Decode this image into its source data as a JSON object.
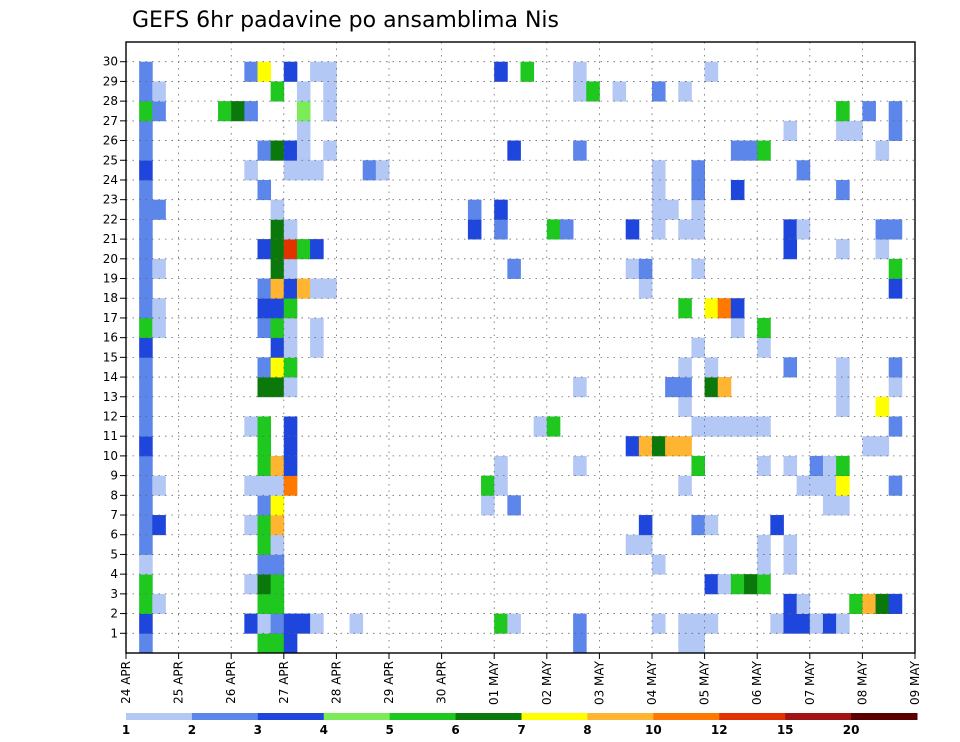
{
  "chart_data": {
    "type": "heatmap",
    "title": "GEFS 6hr padavine po ansamblima Nis",
    "xlabel": "",
    "ylabel": "",
    "y_tick_labels": [
      "1",
      "2",
      "3",
      "4",
      "5",
      "6",
      "7",
      "8",
      "9",
      "10",
      "11",
      "12",
      "13",
      "14",
      "15",
      "16",
      "17",
      "18",
      "19",
      "20",
      "21",
      "22",
      "23",
      "24",
      "25",
      "26",
      "27",
      "28",
      "29",
      "30"
    ],
    "x_tick_labels": [
      "24 APR",
      "25 APR",
      "26 APR",
      "27 APR",
      "28 APR",
      "29 APR",
      "30 APR",
      "01 MAY",
      "02 MAY",
      "03 MAY",
      "04 MAY",
      "05 MAY",
      "06 MAY",
      "07 MAY",
      "08 MAY",
      "09 MAY"
    ],
    "grid": true,
    "colorbar": {
      "labels": [
        "1",
        "2",
        "3",
        "4",
        "5",
        "6",
        "7",
        "8",
        "10",
        "12",
        "15",
        "20"
      ],
      "colors": [
        "#b4c8f5",
        "#5c86ea",
        "#1e46dc",
        "#7ceb5a",
        "#1ec81e",
        "#0a780a",
        "#ffff00",
        "#ffb432",
        "#ff7800",
        "#e13200",
        "#a01414",
        "#5a0000"
      ]
    },
    "cells": [
      [
        1,
        0,
        2
      ],
      [
        1,
        1,
        3
      ],
      [
        1,
        2,
        5
      ],
      [
        1,
        3,
        5
      ],
      [
        1,
        4,
        1
      ],
      [
        1,
        5,
        2
      ],
      [
        1,
        6,
        2
      ],
      [
        1,
        7,
        2
      ],
      [
        1,
        8,
        2
      ],
      [
        1,
        9,
        2
      ],
      [
        1,
        10,
        3
      ],
      [
        1,
        11,
        2
      ],
      [
        1,
        12,
        2
      ],
      [
        1,
        13,
        2
      ],
      [
        1,
        14,
        2
      ],
      [
        1,
        15,
        3
      ],
      [
        1,
        16,
        5
      ],
      [
        1,
        17,
        2
      ],
      [
        1,
        18,
        2
      ],
      [
        1,
        19,
        2
      ],
      [
        1,
        20,
        2
      ],
      [
        1,
        21,
        2
      ],
      [
        1,
        22,
        2
      ],
      [
        1,
        23,
        2
      ],
      [
        1,
        24,
        3
      ],
      [
        1,
        25,
        2
      ],
      [
        1,
        26,
        2
      ],
      [
        1,
        27,
        5
      ],
      [
        1,
        28,
        2
      ],
      [
        1,
        29,
        2
      ],
      [
        2,
        2,
        1
      ],
      [
        2,
        6,
        3
      ],
      [
        2,
        8,
        1
      ],
      [
        2,
        16,
        1
      ],
      [
        2,
        17,
        1
      ],
      [
        2,
        19,
        1
      ],
      [
        2,
        22,
        2
      ],
      [
        2,
        27,
        2
      ],
      [
        2,
        28,
        1
      ],
      [
        7,
        27,
        5
      ],
      [
        8,
        27,
        6
      ],
      [
        9,
        1,
        3
      ],
      [
        9,
        3,
        1
      ],
      [
        9,
        6,
        1
      ],
      [
        9,
        8,
        1
      ],
      [
        9,
        11,
        1
      ],
      [
        9,
        24,
        1
      ],
      [
        9,
        27,
        2
      ],
      [
        9,
        29,
        2
      ],
      [
        10,
        0,
        5
      ],
      [
        10,
        1,
        1
      ],
      [
        10,
        2,
        5
      ],
      [
        10,
        3,
        6
      ],
      [
        10,
        4,
        2
      ],
      [
        10,
        5,
        5
      ],
      [
        10,
        6,
        5
      ],
      [
        10,
        7,
        2
      ],
      [
        10,
        8,
        1
      ],
      [
        10,
        9,
        5
      ],
      [
        10,
        10,
        5
      ],
      [
        10,
        11,
        5
      ],
      [
        10,
        13,
        6
      ],
      [
        10,
        14,
        2
      ],
      [
        10,
        16,
        2
      ],
      [
        10,
        17,
        3
      ],
      [
        10,
        18,
        2
      ],
      [
        10,
        20,
        3
      ],
      [
        10,
        23,
        2
      ],
      [
        10,
        25,
        2
      ],
      [
        10,
        29,
        7
      ],
      [
        11,
        0,
        5
      ],
      [
        11,
        1,
        2
      ],
      [
        11,
        2,
        5
      ],
      [
        11,
        3,
        5
      ],
      [
        11,
        4,
        2
      ],
      [
        11,
        5,
        1
      ],
      [
        11,
        6,
        8
      ],
      [
        11,
        7,
        7
      ],
      [
        11,
        8,
        1
      ],
      [
        11,
        9,
        8
      ],
      [
        11,
        13,
        6
      ],
      [
        11,
        14,
        7
      ],
      [
        11,
        15,
        3
      ],
      [
        11,
        16,
        5
      ],
      [
        11,
        17,
        3
      ],
      [
        11,
        18,
        8
      ],
      [
        11,
        19,
        6
      ],
      [
        11,
        20,
        6
      ],
      [
        11,
        21,
        6
      ],
      [
        11,
        22,
        1
      ],
      [
        11,
        25,
        6
      ],
      [
        11,
        28,
        5
      ],
      [
        12,
        0,
        3
      ],
      [
        12,
        1,
        3
      ],
      [
        12,
        8,
        9
      ],
      [
        12,
        9,
        3
      ],
      [
        12,
        10,
        3
      ],
      [
        12,
        11,
        3
      ],
      [
        12,
        13,
        1
      ],
      [
        12,
        14,
        5
      ],
      [
        12,
        15,
        1
      ],
      [
        12,
        16,
        1
      ],
      [
        12,
        17,
        5
      ],
      [
        12,
        18,
        3
      ],
      [
        12,
        19,
        1
      ],
      [
        12,
        20,
        10
      ],
      [
        12,
        21,
        1
      ],
      [
        12,
        24,
        1
      ],
      [
        12,
        25,
        3
      ],
      [
        12,
        29,
        3
      ],
      [
        13,
        1,
        3
      ],
      [
        13,
        18,
        8
      ],
      [
        13,
        20,
        5
      ],
      [
        13,
        24,
        1
      ],
      [
        13,
        25,
        1
      ],
      [
        13,
        26,
        1
      ],
      [
        13,
        27,
        4
      ],
      [
        13,
        28,
        1
      ],
      [
        14,
        1,
        1
      ],
      [
        14,
        15,
        1
      ],
      [
        14,
        16,
        1
      ],
      [
        14,
        18,
        1
      ],
      [
        14,
        20,
        3
      ],
      [
        14,
        24,
        1
      ],
      [
        14,
        29,
        1
      ],
      [
        15,
        18,
        1
      ],
      [
        15,
        25,
        1
      ],
      [
        15,
        27,
        1
      ],
      [
        15,
        28,
        1
      ],
      [
        15,
        29,
        1
      ],
      [
        17,
        1,
        1
      ],
      [
        18,
        24,
        2
      ],
      [
        19,
        24,
        1
      ],
      [
        26,
        21,
        3
      ],
      [
        26,
        22,
        2
      ],
      [
        27,
        7,
        1
      ],
      [
        27,
        8,
        5
      ],
      [
        28,
        1,
        5
      ],
      [
        28,
        8,
        1
      ],
      [
        28,
        9,
        1
      ],
      [
        28,
        21,
        2
      ],
      [
        28,
        22,
        3
      ],
      [
        28,
        29,
        3
      ],
      [
        29,
        1,
        1
      ],
      [
        29,
        7,
        2
      ],
      [
        29,
        19,
        2
      ],
      [
        29,
        25,
        3
      ],
      [
        30,
        29,
        5
      ],
      [
        31,
        11,
        1
      ],
      [
        32,
        11,
        5
      ],
      [
        32,
        21,
        5
      ],
      [
        33,
        21,
        2
      ],
      [
        34,
        0,
        2
      ],
      [
        34,
        1,
        2
      ],
      [
        34,
        9,
        1
      ],
      [
        34,
        13,
        1
      ],
      [
        34,
        25,
        2
      ],
      [
        34,
        28,
        1
      ],
      [
        34,
        29,
        1
      ],
      [
        35,
        28,
        5
      ],
      [
        37,
        28,
        1
      ],
      [
        38,
        5,
        1
      ],
      [
        38,
        10,
        3
      ],
      [
        38,
        19,
        1
      ],
      [
        38,
        21,
        3
      ],
      [
        39,
        5,
        1
      ],
      [
        39,
        6,
        3
      ],
      [
        39,
        10,
        8
      ],
      [
        39,
        18,
        1
      ],
      [
        39,
        19,
        2
      ],
      [
        40,
        1,
        1
      ],
      [
        40,
        4,
        1
      ],
      [
        40,
        10,
        6
      ],
      [
        40,
        21,
        1
      ],
      [
        40,
        22,
        1
      ],
      [
        40,
        23,
        1
      ],
      [
        40,
        24,
        1
      ],
      [
        40,
        28,
        2
      ],
      [
        41,
        10,
        8
      ],
      [
        41,
        13,
        2
      ],
      [
        41,
        22,
        1
      ],
      [
        42,
        0,
        1
      ],
      [
        42,
        1,
        1
      ],
      [
        42,
        8,
        1
      ],
      [
        42,
        10,
        8
      ],
      [
        42,
        12,
        1
      ],
      [
        42,
        13,
        2
      ],
      [
        42,
        14,
        1
      ],
      [
        42,
        17,
        5
      ],
      [
        42,
        21,
        1
      ],
      [
        42,
        28,
        1
      ],
      [
        43,
        0,
        1
      ],
      [
        43,
        1,
        1
      ],
      [
        43,
        6,
        2
      ],
      [
        43,
        9,
        5
      ],
      [
        43,
        11,
        1
      ],
      [
        43,
        15,
        1
      ],
      [
        43,
        19,
        1
      ],
      [
        43,
        21,
        1
      ],
      [
        43,
        22,
        1
      ],
      [
        43,
        23,
        2
      ],
      [
        43,
        24,
        2
      ],
      [
        44,
        1,
        1
      ],
      [
        44,
        3,
        3
      ],
      [
        44,
        6,
        1
      ],
      [
        44,
        11,
        1
      ],
      [
        44,
        13,
        6
      ],
      [
        44,
        14,
        1
      ],
      [
        44,
        17,
        7
      ],
      [
        44,
        29,
        1
      ],
      [
        45,
        3,
        1
      ],
      [
        45,
        11,
        1
      ],
      [
        45,
        13,
        8
      ],
      [
        45,
        17,
        9
      ],
      [
        46,
        3,
        5
      ],
      [
        46,
        11,
        1
      ],
      [
        46,
        16,
        1
      ],
      [
        46,
        17,
        3
      ],
      [
        46,
        23,
        3
      ],
      [
        46,
        25,
        2
      ],
      [
        47,
        3,
        6
      ],
      [
        47,
        11,
        1
      ],
      [
        47,
        25,
        2
      ],
      [
        48,
        3,
        5
      ],
      [
        48,
        4,
        1
      ],
      [
        48,
        5,
        1
      ],
      [
        48,
        9,
        1
      ],
      [
        48,
        11,
        1
      ],
      [
        48,
        15,
        1
      ],
      [
        48,
        16,
        5
      ],
      [
        48,
        25,
        5
      ],
      [
        49,
        1,
        1
      ],
      [
        49,
        6,
        3
      ],
      [
        50,
        1,
        3
      ],
      [
        50,
        2,
        3
      ],
      [
        50,
        4,
        1
      ],
      [
        50,
        5,
        1
      ],
      [
        50,
        9,
        1
      ],
      [
        50,
        14,
        2
      ],
      [
        50,
        20,
        3
      ],
      [
        50,
        21,
        3
      ],
      [
        50,
        26,
        1
      ],
      [
        51,
        1,
        3
      ],
      [
        51,
        2,
        1
      ],
      [
        51,
        8,
        1
      ],
      [
        51,
        21,
        1
      ],
      [
        51,
        24,
        2
      ],
      [
        52,
        1,
        1
      ],
      [
        52,
        8,
        1
      ],
      [
        52,
        9,
        2
      ],
      [
        53,
        1,
        3
      ],
      [
        53,
        7,
        1
      ],
      [
        53,
        8,
        1
      ],
      [
        53,
        9,
        1
      ],
      [
        54,
        1,
        1
      ],
      [
        54,
        7,
        1
      ],
      [
        54,
        8,
        7
      ],
      [
        54,
        9,
        5
      ],
      [
        54,
        12,
        1
      ],
      [
        54,
        13,
        1
      ],
      [
        54,
        14,
        1
      ],
      [
        54,
        20,
        1
      ],
      [
        54,
        23,
        2
      ],
      [
        54,
        26,
        1
      ],
      [
        54,
        27,
        5
      ],
      [
        55,
        2,
        5
      ],
      [
        55,
        26,
        1
      ],
      [
        56,
        2,
        8
      ],
      [
        56,
        10,
        1
      ],
      [
        56,
        27,
        2
      ],
      [
        57,
        2,
        6
      ],
      [
        57,
        10,
        1
      ],
      [
        57,
        12,
        7
      ],
      [
        57,
        20,
        1
      ],
      [
        57,
        21,
        2
      ],
      [
        57,
        25,
        1
      ],
      [
        58,
        2,
        3
      ],
      [
        58,
        8,
        2
      ],
      [
        58,
        11,
        2
      ],
      [
        58,
        13,
        1
      ],
      [
        58,
        14,
        2
      ],
      [
        58,
        18,
        3
      ],
      [
        58,
        19,
        5
      ],
      [
        58,
        21,
        2
      ],
      [
        58,
        26,
        2
      ],
      [
        58,
        27,
        2
      ]
    ]
  }
}
